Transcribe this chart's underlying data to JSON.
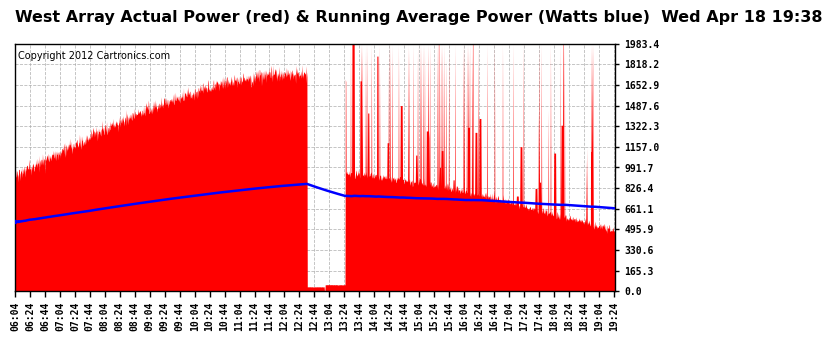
{
  "title": "West Array Actual Power (red) & Running Average Power (Watts blue)  Wed Apr 18 19:38",
  "copyright": "Copyright 2012 Cartronics.com",
  "yticks": [
    0.0,
    165.3,
    330.6,
    495.9,
    661.1,
    826.4,
    991.7,
    1157.0,
    1322.3,
    1487.6,
    1652.9,
    1818.2,
    1983.4
  ],
  "ymax": 1983.4,
  "ymin": 0.0,
  "background_color": "#ffffff",
  "fill_color": "#ff0000",
  "line_color": "#0000ff",
  "grid_color": "#aaaaaa",
  "title_fontsize": 11.5,
  "copyright_fontsize": 7,
  "tick_fontsize": 7,
  "x_start_hour": 6,
  "x_start_min": 4,
  "x_end_hour": 19,
  "x_end_min": 26,
  "num_points": 1640
}
